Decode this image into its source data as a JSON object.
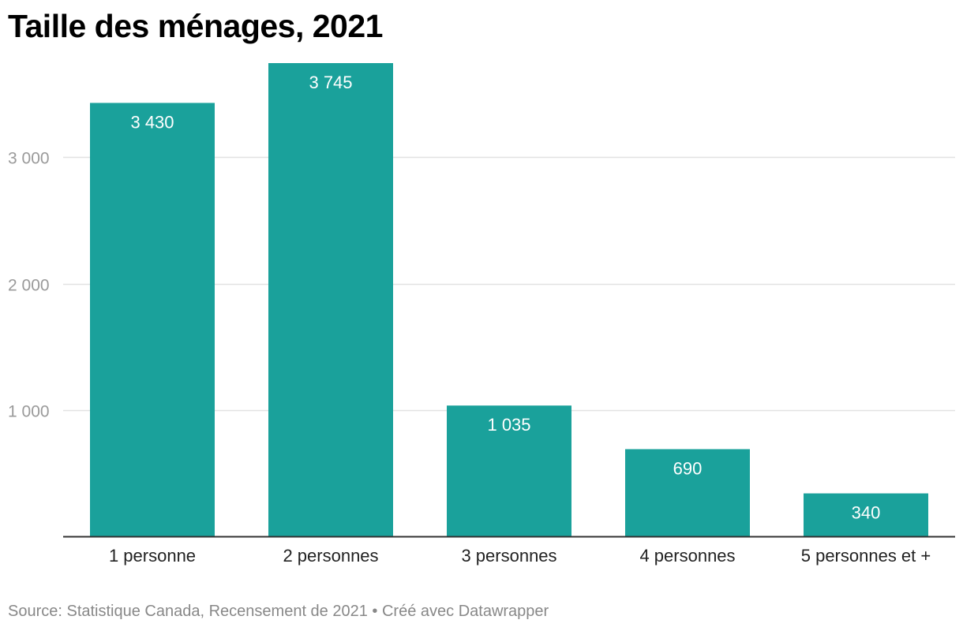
{
  "title": "Taille des ménages, 2021",
  "footer": {
    "source": "Source: Statistique Canada, Recensement de 2021",
    "separator": " • ",
    "credit": "Créé avec Datawrapper"
  },
  "colors": {
    "bar": "#1aa19b",
    "grid": "#e2e2e2",
    "axis": "#333333",
    "tick_text": "#9a9a9a",
    "footer_text": "#888888"
  },
  "chart_data": {
    "type": "bar",
    "title": "Taille des ménages, 2021",
    "categories": [
      "1 personne",
      "2 personnes",
      "3 personnes",
      "4 personnes",
      "5 personnes et +"
    ],
    "values": [
      3430,
      3745,
      1035,
      690,
      340
    ],
    "value_labels": [
      "3 430",
      "3 745",
      "1 035",
      "690",
      "340"
    ],
    "ylim": [
      0,
      3745
    ],
    "yticks": [
      1000,
      2000,
      3000
    ],
    "ytick_labels": [
      "1 000",
      "2 000",
      "3 000"
    ],
    "grid": true,
    "xlabel": "",
    "ylabel": ""
  }
}
